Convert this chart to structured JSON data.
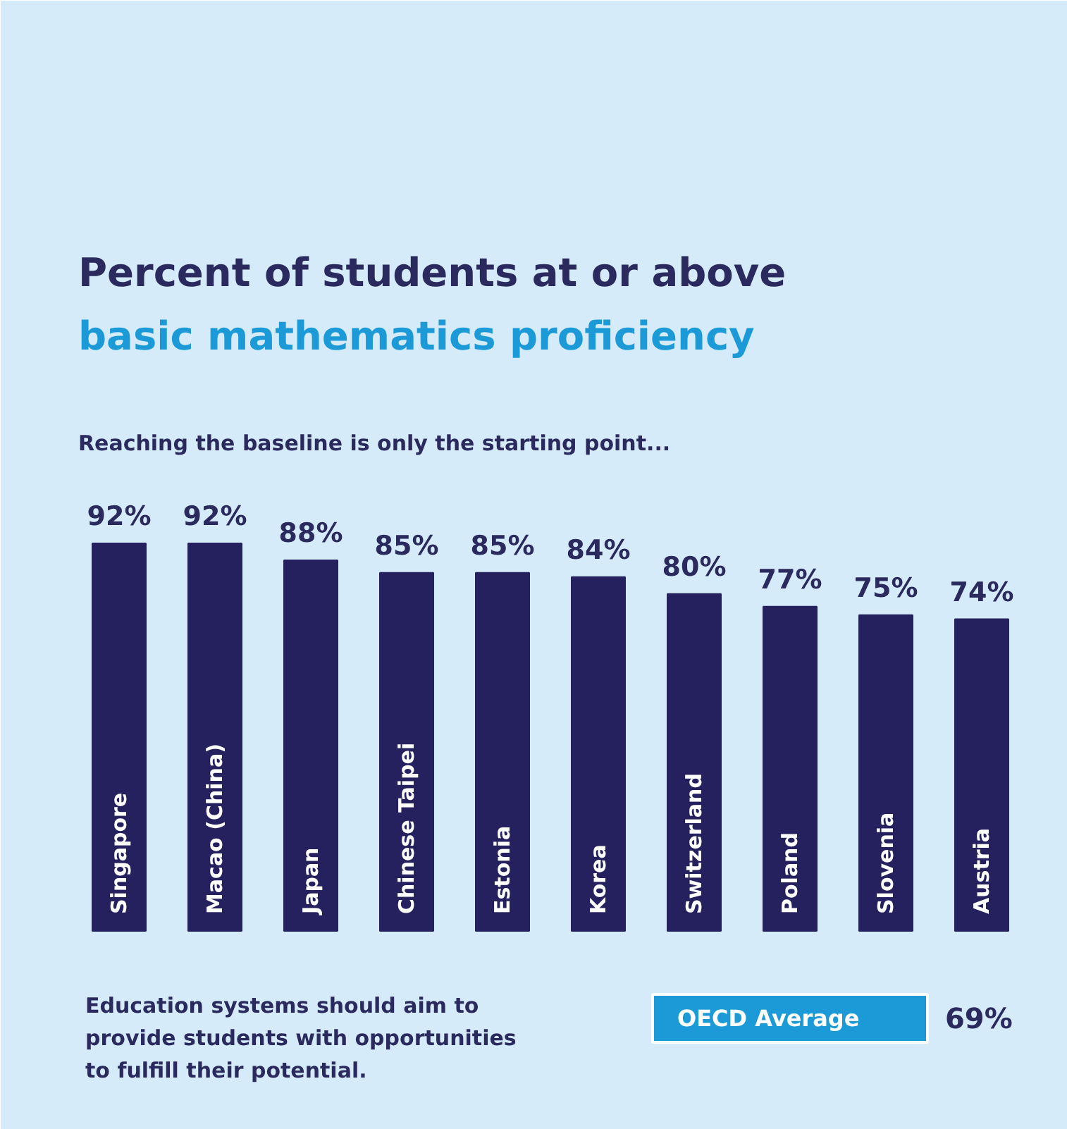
{
  "chart_data": {
    "type": "bar",
    "title": "Percent of students at or above",
    "subtitle": "basic mathematics proficiency",
    "categories": [
      "Singapore",
      "Macao (China)",
      "Japan",
      "Chinese Taipei",
      "Estonia",
      "Korea",
      "Switzerland",
      "Poland",
      "Slovenia",
      "Austria"
    ],
    "values": [
      92,
      92,
      88,
      85,
      85,
      84,
      80,
      77,
      75,
      74
    ],
    "value_labels": [
      "92%",
      "92%",
      "88%",
      "85%",
      "85%",
      "84%",
      "80%",
      "77%",
      "75%",
      "74%"
    ],
    "color": "#25215e",
    "grid": false,
    "annotations": [
      "Reaching the baseline is only the starting point...",
      "Education systems should aim to provide students with opportunities to fulfill their potential.",
      "OECD Average",
      "69%"
    ]
  }
}
